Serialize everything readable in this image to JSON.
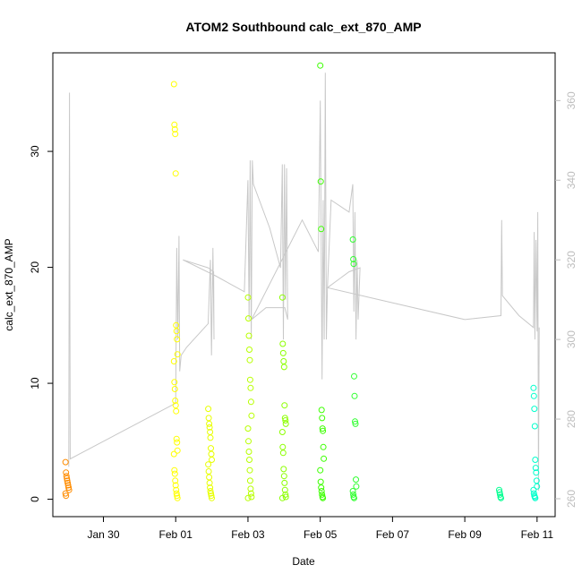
{
  "chart_data": {
    "type": "scatter",
    "title": "ATOM2 Southbound calc_ext_870_AMP",
    "xlabel": "Date",
    "ylabel": "calc_ext_870_AMP",
    "x_tick_labels": [
      "Jan 30",
      "Feb 01",
      "Feb 03",
      "Feb 05",
      "Feb 07",
      "Feb 09",
      "Feb 11"
    ],
    "x_ticks_day": [
      30,
      32,
      34,
      36,
      38,
      40,
      42
    ],
    "xlim_day": [
      28.6,
      42.5
    ],
    "ylim": [
      -1.5,
      38.5
    ],
    "y_ticks": [
      0,
      10,
      20,
      30
    ],
    "y2lim": [
      255.5,
      372
    ],
    "y2_ticks": [
      260,
      280,
      300,
      320,
      340,
      360
    ],
    "grid": false,
    "legend": "none",
    "colors": {
      "line": "#c8c8c8",
      "axis": "#000000",
      "right_axis": "#bdbdbd"
    },
    "point_clusters": [
      {
        "day": 29.0,
        "color": "#ff8c00",
        "values": [
          3.2,
          2.3,
          2.0,
          1.8,
          1.6,
          1.4,
          1.2,
          1.0,
          0.8,
          0.5,
          0.3
        ]
      },
      {
        "day": 32.0,
        "color": "#ffff00",
        "values": [
          35.8,
          32.3,
          31.9,
          31.5,
          28.1,
          15.0,
          14.5,
          13.8,
          12.5,
          11.9,
          10.1,
          9.5,
          8.5,
          8.1,
          7.6,
          5.2,
          4.9,
          4.2,
          3.9,
          2.5,
          2.2,
          1.6,
          1.2,
          0.8,
          0.5,
          0.3,
          0.1
        ]
      },
      {
        "day": 32.95,
        "color": "#e8ff00",
        "values": [
          7.8,
          7.0,
          6.5,
          6.2,
          5.8,
          5.3,
          4.4,
          3.9,
          3.4,
          3.0,
          2.4,
          1.9,
          1.4,
          1.0,
          0.7,
          0.5,
          0.3,
          0.1
        ]
      },
      {
        "day": 34.05,
        "color": "#b8ff00",
        "values": [
          17.4,
          15.6,
          14.1,
          12.9,
          12.0,
          10.3,
          9.6,
          8.4,
          7.2,
          6.1,
          5.0,
          4.1,
          3.4,
          2.5,
          1.6,
          0.9,
          0.5,
          0.2,
          0.1
        ]
      },
      {
        "day": 35.0,
        "color": "#8cff00",
        "values": [
          17.4,
          13.4,
          12.6,
          11.9,
          11.4,
          8.1,
          7.0,
          6.8,
          6.5,
          5.8,
          4.5,
          4.0,
          2.6,
          2.0,
          1.4,
          0.8,
          0.4,
          0.2,
          0.1
        ]
      },
      {
        "day": 36.05,
        "color": "#3cff00",
        "values": [
          37.4,
          27.4,
          23.3,
          7.7,
          7.0,
          6.1,
          5.9,
          4.5,
          3.5,
          2.5,
          1.5,
          1.0,
          0.7,
          0.4,
          0.2,
          0.1
        ]
      },
      {
        "day": 36.95,
        "color": "#30ff30",
        "values": [
          22.4,
          20.7,
          20.3,
          10.6,
          8.9,
          6.7,
          6.5,
          1.7,
          1.1,
          0.7,
          0.4,
          0.2,
          0.1
        ]
      },
      {
        "day": 41.0,
        "color": "#00ff90",
        "values": [
          0.8,
          0.6,
          0.4,
          0.2,
          0.1
        ]
      },
      {
        "day": 41.95,
        "color": "#00ffcc",
        "values": [
          9.6,
          8.9,
          7.8,
          6.3,
          3.4,
          2.7,
          2.3,
          1.6,
          1.1,
          0.8,
          0.5,
          0.3,
          0.2,
          0.1
        ]
      }
    ],
    "secondary_line_pts": [
      [
        29.04,
        268
      ],
      [
        29.06,
        362
      ],
      [
        29.08,
        270
      ],
      [
        32.0,
        284
      ],
      [
        32.03,
        323
      ],
      [
        32.06,
        300
      ],
      [
        32.09,
        326
      ],
      [
        32.11,
        292
      ],
      [
        32.15,
        296
      ],
      [
        32.3,
        298
      ],
      [
        32.9,
        304
      ],
      [
        32.96,
        320
      ],
      [
        32.99,
        296
      ],
      [
        33.03,
        323
      ],
      [
        33.06,
        300
      ],
      [
        33.05,
        317
      ],
      [
        32.9,
        318
      ],
      [
        32.2,
        320
      ],
      [
        33.1,
        316
      ],
      [
        33.9,
        312
      ],
      [
        34.0,
        340
      ],
      [
        34.03,
        305
      ],
      [
        34.06,
        345
      ],
      [
        34.09,
        300
      ],
      [
        34.12,
        345
      ],
      [
        34.15,
        339
      ],
      [
        34.6,
        328
      ],
      [
        34.9,
        318
      ],
      [
        34.95,
        344
      ],
      [
        34.98,
        300
      ],
      [
        35.01,
        344
      ],
      [
        35.04,
        310
      ],
      [
        35.07,
        343
      ],
      [
        35.1,
        305
      ],
      [
        35.02,
        308
      ],
      [
        34.5,
        308
      ],
      [
        34.1,
        305
      ],
      [
        35.5,
        330
      ],
      [
        35.95,
        322
      ],
      [
        36.0,
        360
      ],
      [
        36.05,
        290
      ],
      [
        36.08,
        335
      ],
      [
        36.11,
        300
      ],
      [
        36.14,
        367
      ],
      [
        36.17,
        300
      ],
      [
        36.2,
        313
      ],
      [
        36.3,
        335
      ],
      [
        36.8,
        332
      ],
      [
        36.9,
        339
      ],
      [
        36.93,
        307
      ],
      [
        36.96,
        332
      ],
      [
        36.99,
        300
      ],
      [
        37.02,
        320
      ],
      [
        37.05,
        305
      ],
      [
        37.1,
        318
      ],
      [
        36.8,
        317
      ],
      [
        36.2,
        313
      ],
      [
        40.0,
        305
      ],
      [
        41.0,
        306
      ],
      [
        41.02,
        330
      ],
      [
        41.04,
        311
      ],
      [
        41.5,
        306
      ],
      [
        41.9,
        303
      ],
      [
        41.92,
        327
      ],
      [
        41.94,
        300
      ],
      [
        41.97,
        325
      ],
      [
        42.0,
        302
      ],
      [
        42.02,
        332
      ],
      [
        42.04,
        262
      ],
      [
        42.06,
        303
      ]
    ]
  }
}
